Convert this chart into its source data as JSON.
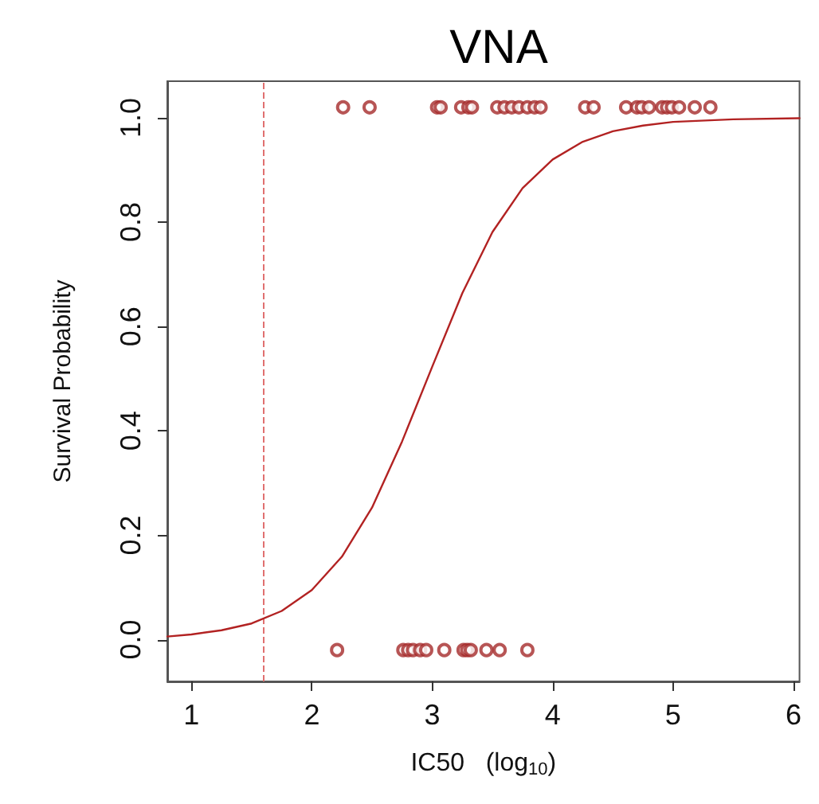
{
  "chart_data": {
    "type": "scatter",
    "title": "VNA",
    "xlabel": "IC50   (log$_{10}$)",
    "ylabel": "Survival Probability",
    "xlim": [
      0.8,
      6.05
    ],
    "ylim": [
      -0.08,
      1.07
    ],
    "xticks": [
      1,
      2,
      3,
      4,
      5,
      6
    ],
    "yticks": [
      {
        "value": 0,
        "label": "0.0"
      },
      0.2,
      0.4,
      0.6,
      0.8,
      {
        "value": 1,
        "label": "1.0"
      }
    ],
    "grid": false,
    "marker": "circle",
    "series": [
      {
        "color": "#a52a2a",
        "x": [
          2.26,
          2.48,
          3.04,
          3.07,
          3.24,
          3.3,
          3.33,
          3.54,
          3.6,
          3.66,
          3.72,
          3.79,
          3.85,
          3.9,
          4.27,
          4.34,
          4.61,
          4.7,
          4.74,
          4.8,
          4.91,
          4.95,
          4.99,
          5.05,
          5.18,
          5.31
        ],
        "values": [
          1.02,
          1.02,
          1.02,
          1.02,
          1.02,
          1.02,
          1.02,
          1.02,
          1.02,
          1.02,
          1.02,
          1.02,
          1.02,
          1.02,
          1.02,
          1.02,
          1.02,
          1.02,
          1.02,
          1.02,
          1.02,
          1.02,
          1.02,
          1.02,
          1.02,
          1.02
        ]
      },
      {
        "color": "#a52a2a",
        "x": [
          2.21,
          2.76,
          2.8,
          2.84,
          2.9,
          2.95,
          3.1,
          3.26,
          3.29,
          3.32,
          3.45,
          3.56,
          3.79
        ],
        "values": [
          -0.02,
          -0.02,
          -0.02,
          -0.02,
          -0.02,
          -0.02,
          -0.02,
          -0.02,
          -0.02,
          -0.02,
          -0.02,
          -0.02,
          -0.02
        ]
      },
      {
        "type": "line",
        "color": "#b22222",
        "marker": "none",
        "line_style": "solid",
        "x": [
          0.8,
          1,
          1.25,
          1.5,
          1.75,
          2,
          2.25,
          2.5,
          2.75,
          3,
          3.25,
          3.5,
          3.75,
          4,
          4.25,
          4.5,
          4.75,
          5,
          5.5,
          6.05
        ],
        "values": [
          0.006,
          0.01,
          0.018,
          0.031,
          0.055,
          0.095,
          0.159,
          0.253,
          0.38,
          0.523,
          0.664,
          0.781,
          0.865,
          0.92,
          0.954,
          0.974,
          0.985,
          0.992,
          0.997,
          0.999
        ]
      }
    ],
    "ref_lines": [
      {
        "axis": "x",
        "value": 1.6,
        "color": "#e07070",
        "line_style": "dashed"
      }
    ]
  }
}
